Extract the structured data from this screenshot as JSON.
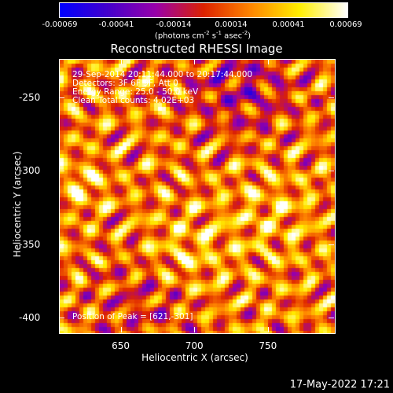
{
  "colorbar": {
    "ticks": [
      "-0.00069",
      "-0.00041",
      "-0.00014",
      "0.00014",
      "0.00041",
      "0.00069"
    ],
    "units_main": "(photons cm",
    "units_exp1": "-2",
    "units_mid1": " s",
    "units_exp2": "-1",
    "units_mid2": " asec",
    "units_exp3": "-2",
    "units_end": ")",
    "colors": [
      "#0000ff",
      "#4400cc",
      "#9900aa",
      "#dd2200",
      "#ff8800",
      "#ffee00",
      "#ffffff"
    ]
  },
  "title": "Reconstructed RHESSI Image",
  "annotations": {
    "time_range": "29-Sep-2014 20:11:44.000 to 20:17:44.000",
    "detectors": "Detectors: 3F 6F 9F, Att 0",
    "energy": "Energy Range: 25.0 - 50.0 keV",
    "clean": "Clean     Total counts: 4.02E+03",
    "peak": "Position of Peak = [621,-301]"
  },
  "axes": {
    "xlabel": "Heliocentric X (arcsec)",
    "ylabel": "Heliocentric Y (arcsec)",
    "xticks": [
      {
        "label": "650",
        "value": 650
      },
      {
        "label": "700",
        "value": 700
      },
      {
        "label": "750",
        "value": 750
      }
    ],
    "yticks": [
      {
        "label": "-250",
        "value": -250
      },
      {
        "label": "-300",
        "value": -300
      },
      {
        "label": "-350",
        "value": -350
      },
      {
        "label": "-400",
        "value": -400
      }
    ],
    "xlim": [
      608,
      795
    ],
    "ylim": [
      -410,
      -224
    ]
  },
  "timestamp": "17-May-2022 17:21"
}
